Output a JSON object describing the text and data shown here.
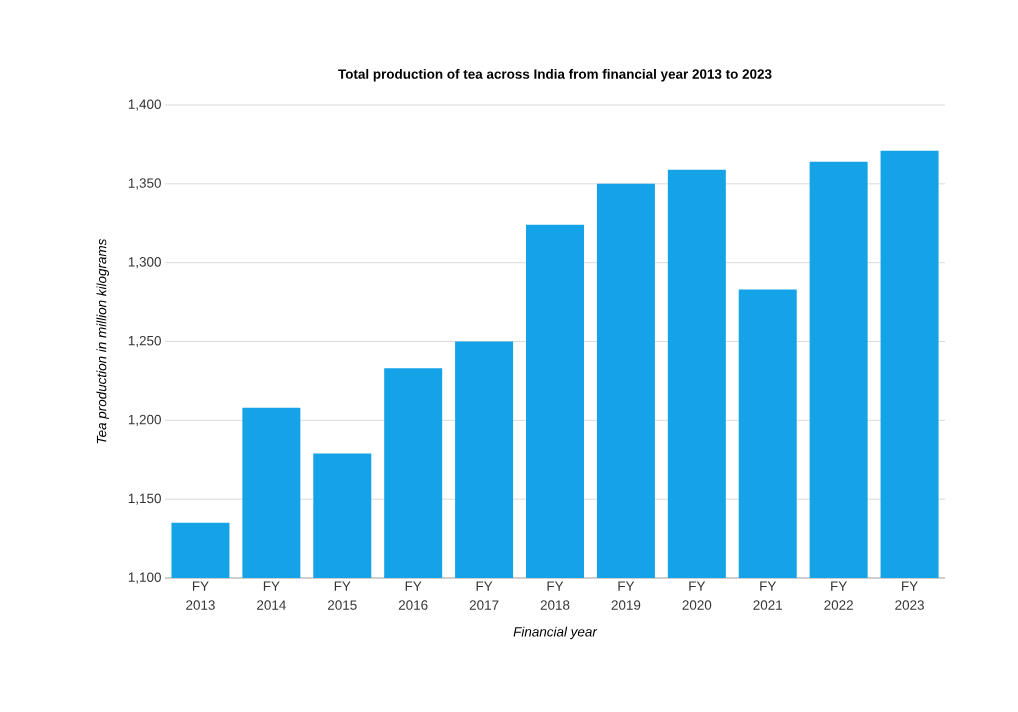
{
  "chart_data": {
    "type": "bar",
    "title": "Total production of tea across India from financial year 2013 to 2023",
    "xlabel": "Financial year",
    "ylabel": "Tea production in million kilograms",
    "categories": [
      "FY 2013",
      "FY 2014",
      "FY 2015",
      "FY 2016",
      "FY 2017",
      "FY 2018",
      "FY 2019",
      "FY 2020",
      "FY 2021",
      "FY 2022",
      "FY 2023"
    ],
    "values": [
      1135,
      1208,
      1179,
      1233,
      1250,
      1324,
      1350,
      1359,
      1283,
      1364,
      1371
    ],
    "color": "#14a3e6",
    "ylim": [
      1100,
      1400
    ],
    "yticks": [
      {
        "value": 1100,
        "label": "1,100"
      },
      {
        "value": 1150,
        "label": "1,150"
      },
      {
        "value": 1200,
        "label": "1,200"
      },
      {
        "value": 1250,
        "label": "1,250"
      },
      {
        "value": 1300,
        "label": "1,300"
      },
      {
        "value": 1350,
        "label": "1,350"
      },
      {
        "value": 1400,
        "label": "1,400"
      }
    ],
    "grid": "y"
  }
}
